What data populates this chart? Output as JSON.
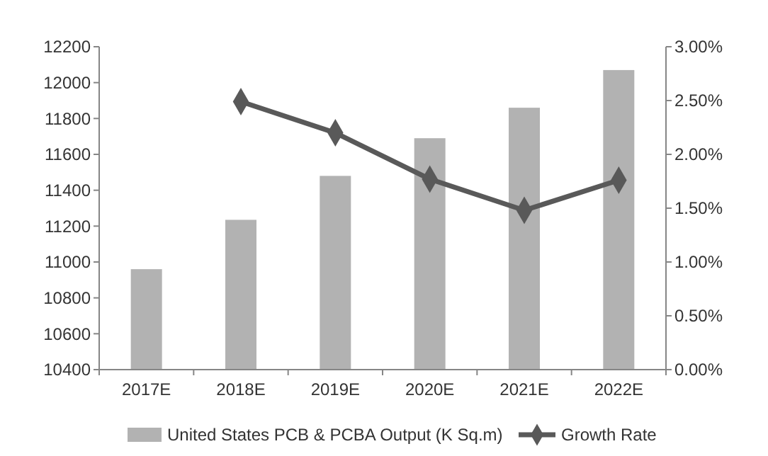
{
  "chart_data": {
    "type": "bar",
    "categories": [
      "2017E",
      "2018E",
      "2019E",
      "2020E",
      "2021E",
      "2022E"
    ],
    "series": [
      {
        "name": "United States PCB & PCBA Output (K Sq.m)",
        "color": "#b2b2b2",
        "values": [
          10960,
          11235,
          11480,
          11690,
          11860,
          12070
        ]
      },
      {
        "name": "Growth Rate",
        "type": "line",
        "axis": "y2",
        "color": "#595959",
        "marker": "diamond",
        "values": [
          null,
          2.49,
          2.2,
          1.77,
          1.48,
          1.76
        ]
      }
    ],
    "ylim": [
      10400,
      12200
    ],
    "yticks": [
      10400,
      10600,
      10800,
      11000,
      11200,
      11400,
      11600,
      11800,
      12000,
      12200
    ],
    "y2lim": [
      0,
      3
    ],
    "y2ticks": [
      {
        "value": 0,
        "label": "0.00%"
      },
      {
        "value": 0.5,
        "label": "0.50%"
      },
      {
        "value": 1,
        "label": "1.00%"
      },
      {
        "value": 1.5,
        "label": "1.50%"
      },
      {
        "value": 2,
        "label": "2.00%"
      },
      {
        "value": 2.5,
        "label": "2.50%"
      },
      {
        "value": 3,
        "label": "3.00%"
      }
    ],
    "legend": "bottom"
  }
}
